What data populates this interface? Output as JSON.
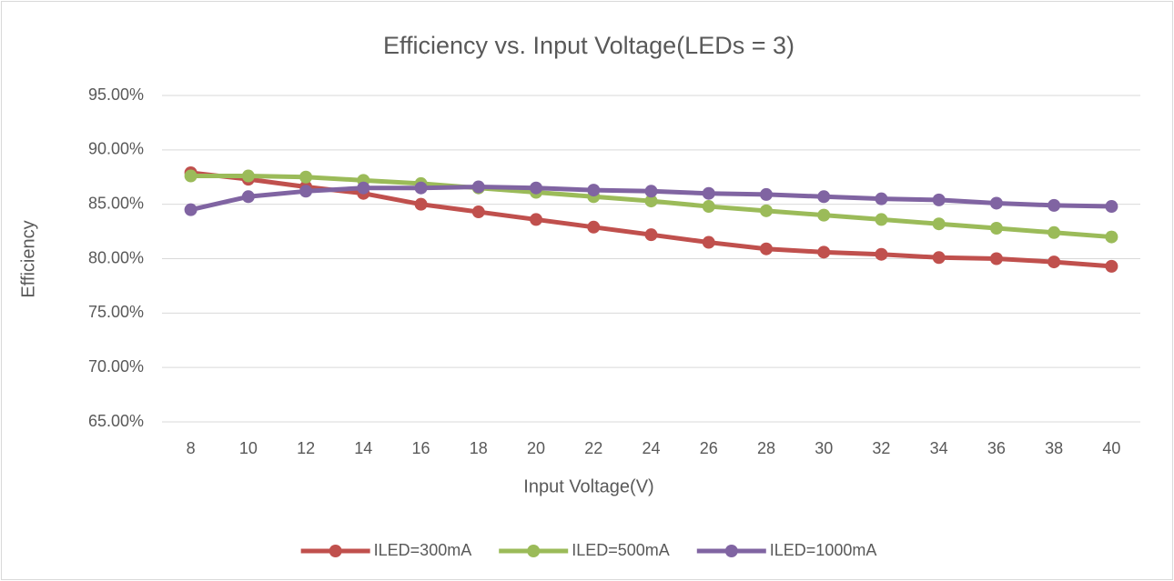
{
  "chart_data": {
    "type": "line",
    "title": "Efficiency vs. Input Voltage(LEDs = 3)",
    "x_label": "Input Voltage(V)",
    "y_label": "Efficiency",
    "categories": [
      "8",
      "10",
      "12",
      "14",
      "16",
      "18",
      "20",
      "22",
      "24",
      "26",
      "28",
      "30",
      "32",
      "34",
      "36",
      "38",
      "40"
    ],
    "series": [
      {
        "name": "ILED=300mA",
        "color": "#c0504d",
        "values": [
          87.9,
          87.3,
          86.6,
          86.0,
          85.0,
          84.3,
          83.6,
          82.9,
          82.2,
          81.5,
          80.9,
          80.6,
          80.4,
          80.1,
          80.0,
          79.7,
          79.3
        ]
      },
      {
        "name": "ILED=500mA",
        "color": "#9bbb59",
        "values": [
          87.6,
          87.6,
          87.5,
          87.2,
          86.9,
          86.5,
          86.1,
          85.7,
          85.3,
          84.8,
          84.4,
          84.0,
          83.6,
          83.2,
          82.8,
          82.4,
          82.0
        ]
      },
      {
        "name": "ILED=1000mA",
        "color": "#8064a2",
        "values": [
          84.5,
          85.7,
          86.2,
          86.5,
          86.5,
          86.6,
          86.5,
          86.3,
          86.2,
          86.0,
          85.9,
          85.7,
          85.5,
          85.4,
          85.1,
          84.9,
          84.8
        ]
      }
    ],
    "ylim": [
      65,
      95
    ],
    "yticks": [
      {
        "value": 65,
        "label": "65.00%"
      },
      {
        "value": 70,
        "label": "70.00%"
      },
      {
        "value": 75,
        "label": "75.00%"
      },
      {
        "value": 80,
        "label": "80.00%"
      },
      {
        "value": 85,
        "label": "85.00%"
      },
      {
        "value": 90,
        "label": "90.00%"
      },
      {
        "value": 95,
        "label": "95.00%"
      }
    ],
    "grid": true,
    "legend": "bottom"
  }
}
